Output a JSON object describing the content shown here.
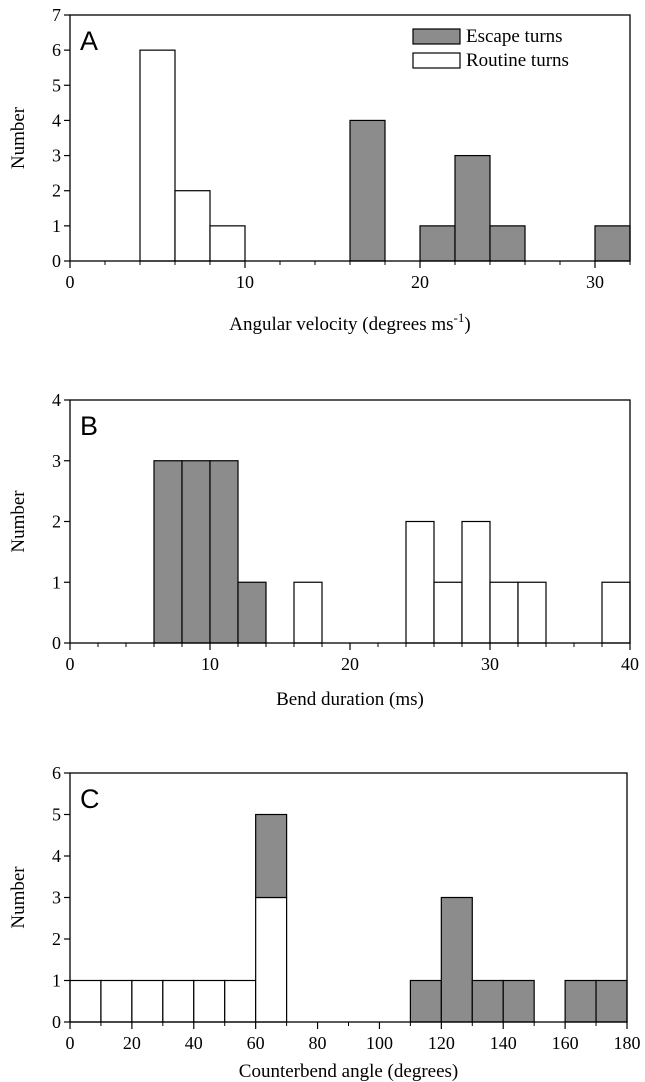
{
  "colors": {
    "escape": "#8c8c8c",
    "routine": "#ffffff",
    "stroke": "#000000"
  },
  "legend": {
    "escape_label": "Escape turns",
    "routine_label": "Routine turns"
  },
  "chart_data": [
    {
      "type": "bar",
      "panel": "A",
      "xlabel": "Angular velocity (degrees ms",
      "xlabel_sup": "-1",
      "xlabel_close": ")",
      "ylabel": "Number",
      "xlim": [
        0,
        32
      ],
      "ylim": [
        0,
        7
      ],
      "xticks": [
        0,
        10,
        20,
        30
      ],
      "minor_xticks": [
        2,
        4,
        6,
        8,
        12,
        14,
        16,
        18,
        22,
        24,
        26,
        28,
        32
      ],
      "yticks": [
        0,
        1,
        2,
        3,
        4,
        5,
        6,
        7
      ],
      "bin_width": 2,
      "series": [
        {
          "name": "Routine turns",
          "bins": [
            {
              "x0": 4,
              "count": 6
            },
            {
              "x0": 6,
              "count": 2
            },
            {
              "x0": 8,
              "count": 1
            }
          ]
        },
        {
          "name": "Escape turns",
          "bins": [
            {
              "x0": 16,
              "count": 4
            },
            {
              "x0": 20,
              "count": 1
            },
            {
              "x0": 22,
              "count": 3
            },
            {
              "x0": 24,
              "count": 1
            },
            {
              "x0": 30,
              "count": 1
            }
          ]
        }
      ],
      "legend_position": "top-right"
    },
    {
      "type": "bar",
      "panel": "B",
      "xlabel": "Bend duration (ms)",
      "ylabel": "Number",
      "xlim": [
        0,
        40
      ],
      "ylim": [
        0,
        4
      ],
      "xticks": [
        0,
        10,
        20,
        30,
        40
      ],
      "minor_xticks": [
        2,
        4,
        6,
        8,
        12,
        14,
        16,
        18,
        22,
        24,
        26,
        28,
        32,
        34,
        36,
        38
      ],
      "yticks": [
        0,
        1,
        2,
        3,
        4
      ],
      "bin_width": 2,
      "series": [
        {
          "name": "Escape turns",
          "bins": [
            {
              "x0": 6,
              "count": 3
            },
            {
              "x0": 8,
              "count": 3
            },
            {
              "x0": 10,
              "count": 3
            },
            {
              "x0": 12,
              "count": 1
            }
          ]
        },
        {
          "name": "Routine turns",
          "bins": [
            {
              "x0": 16,
              "count": 1
            },
            {
              "x0": 24,
              "count": 2
            },
            {
              "x0": 26,
              "count": 1
            },
            {
              "x0": 28,
              "count": 2
            },
            {
              "x0": 30,
              "count": 1
            },
            {
              "x0": 32,
              "count": 1
            },
            {
              "x0": 38,
              "count": 1
            }
          ]
        }
      ]
    },
    {
      "type": "bar",
      "panel": "C",
      "xlabel": "Counterbend angle (degrees)",
      "ylabel": "Number",
      "xlim": [
        0,
        180
      ],
      "ylim": [
        0,
        6
      ],
      "xticks": [
        0,
        20,
        40,
        60,
        80,
        100,
        120,
        140,
        160,
        180
      ],
      "minor_xticks": [
        10,
        30,
        50,
        70,
        90,
        110,
        130,
        150,
        170
      ],
      "yticks": [
        0,
        1,
        2,
        3,
        4,
        5,
        6
      ],
      "bin_width": 10,
      "stacked": true,
      "series": [
        {
          "name": "Routine turns",
          "bins": [
            {
              "x0": 0,
              "count": 1
            },
            {
              "x0": 10,
              "count": 1
            },
            {
              "x0": 20,
              "count": 1
            },
            {
              "x0": 30,
              "count": 1
            },
            {
              "x0": 40,
              "count": 1
            },
            {
              "x0": 50,
              "count": 1
            },
            {
              "x0": 60,
              "count": 3
            }
          ]
        },
        {
          "name": "Escape turns",
          "bins": [
            {
              "x0": 60,
              "count": 2
            },
            {
              "x0": 110,
              "count": 1
            },
            {
              "x0": 120,
              "count": 3
            },
            {
              "x0": 130,
              "count": 1
            },
            {
              "x0": 140,
              "count": 1
            },
            {
              "x0": 160,
              "count": 1
            },
            {
              "x0": 170,
              "count": 1
            }
          ]
        }
      ]
    }
  ]
}
